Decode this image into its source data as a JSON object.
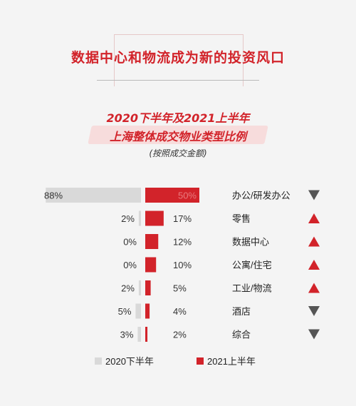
{
  "page": {
    "main_title": "数据中心和物流成为新的投资风口",
    "subtitle_line1": "2020下半年及2021上半年",
    "subtitle_line2": "上海整体成交物业类型比例",
    "subtitle_line3": "(按照成交金额)"
  },
  "colors": {
    "accent": "#d2232a",
    "bar_2020": "#d9d9d9",
    "bar_2021": "#d2232a",
    "arrow": "#555555"
  },
  "chart_data": {
    "type": "bar",
    "categories": [
      "办公/研发办公",
      "零售",
      "数据中心",
      "公寓/住宅",
      "工业/物流",
      "酒店",
      "综合"
    ],
    "series": [
      {
        "name": "2020下半年",
        "values": [
          88,
          2,
          0,
          0,
          2,
          5,
          3
        ],
        "labels": [
          "88%",
          "2%",
          "0%",
          "0%",
          "2%",
          "5%",
          "3%"
        ]
      },
      {
        "name": "2021上半年",
        "values": [
          50,
          17,
          12,
          10,
          5,
          4,
          2
        ],
        "labels": [
          "50%",
          "17%",
          "12%",
          "10%",
          "5%",
          "4%",
          "2%"
        ]
      }
    ],
    "trends": [
      "down",
      "up",
      "up",
      "up",
      "up",
      "down",
      "down"
    ],
    "legend_position": "bottom"
  }
}
